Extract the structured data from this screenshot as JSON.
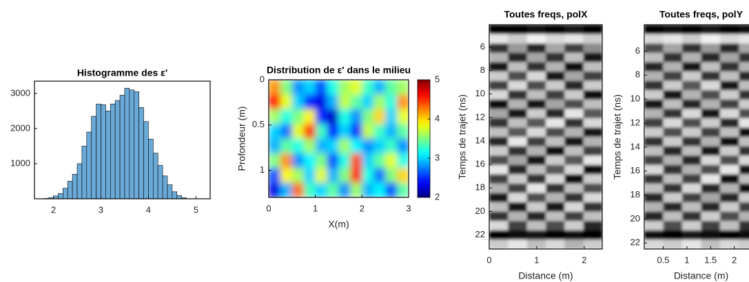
{
  "chart_data": [
    {
      "type": "histogram",
      "title": "Histogramme des ε'",
      "color": "#6aaad8",
      "bins": [
        1.8,
        1.9,
        2.0,
        2.1,
        2.2,
        2.3,
        2.4,
        2.5,
        2.6,
        2.7,
        2.8,
        2.9,
        3.0,
        3.1,
        3.2,
        3.3,
        3.4,
        3.5,
        3.6,
        3.7,
        3.8,
        3.9,
        4.0,
        4.1,
        4.2,
        4.3,
        4.4,
        4.5,
        4.6,
        4.7,
        4.8
      ],
      "values": [
        10,
        30,
        80,
        150,
        300,
        500,
        700,
        1000,
        1500,
        1900,
        2350,
        2700,
        2680,
        2500,
        2700,
        2800,
        2950,
        3150,
        3100,
        3050,
        2600,
        2200,
        1700,
        1300,
        950,
        650,
        400,
        200,
        90,
        30
      ],
      "xlim": [
        1.6,
        5.3
      ],
      "xticks": [
        2,
        3,
        4,
        5
      ],
      "ylim": [
        0,
        3350
      ],
      "yticks": [
        1000,
        2000,
        3000
      ]
    },
    {
      "type": "heatmap",
      "title": "Distribution de ε' dans le milieu",
      "xlabel": "X(m)",
      "ylabel": "Profondeur (m)",
      "xlim": [
        0,
        3
      ],
      "xticks": [
        0,
        1,
        2,
        3
      ],
      "ylim": [
        1.3,
        0
      ],
      "yticks": [
        0,
        0.5,
        1
      ],
      "colormap": "jet",
      "colorbar": true,
      "zlim": [
        2,
        5
      ],
      "zticks": [
        2,
        3,
        4,
        5
      ],
      "z": [
        [
          4.2,
          3.5,
          2.8,
          3.0,
          2.6,
          3.2,
          3.6,
          3.8,
          3.3,
          2.9,
          3.4,
          3.6
        ],
        [
          4.6,
          3.8,
          3.0,
          2.5,
          2.3,
          2.9,
          3.7,
          3.4,
          3.0,
          3.6,
          3.2,
          4.2
        ],
        [
          3.6,
          3.2,
          3.5,
          3.9,
          2.5,
          2.2,
          3.2,
          2.8,
          3.5,
          4.0,
          3.0,
          3.8
        ],
        [
          3.0,
          2.7,
          3.8,
          4.5,
          3.3,
          2.4,
          3.0,
          2.5,
          3.7,
          3.3,
          2.9,
          3.4
        ],
        [
          2.9,
          3.4,
          3.2,
          3.6,
          2.9,
          3.0,
          3.6,
          3.1,
          2.8,
          3.0,
          3.3,
          2.8
        ],
        [
          3.5,
          4.2,
          2.8,
          3.1,
          3.5,
          2.6,
          3.2,
          4.4,
          3.0,
          3.4,
          3.8,
          3.2
        ],
        [
          2.6,
          3.9,
          3.6,
          3.0,
          3.8,
          2.9,
          3.5,
          4.6,
          3.2,
          2.7,
          3.5,
          4.0
        ],
        [
          2.3,
          2.9,
          4.3,
          3.3,
          3.0,
          3.4,
          2.8,
          3.6,
          2.9,
          3.1,
          2.6,
          3.4
        ]
      ]
    },
    {
      "type": "heatmap",
      "title": "Toutes freqs, polX",
      "xlabel": "Distance (m)",
      "ylabel": "Temps de trajet (ns)",
      "xlim": [
        0,
        2.38
      ],
      "xticks": [
        0,
        1,
        2
      ],
      "ylim": [
        23.2,
        4.1
      ],
      "yticks": [
        6,
        8,
        10,
        12,
        14,
        16,
        18,
        20,
        22
      ],
      "colormap": "gray",
      "colorbar": false,
      "zlim": [
        -1,
        1
      ],
      "z": [
        [
          -1,
          -1,
          -0.9,
          -1,
          -0.8,
          -1
        ],
        [
          0.8,
          0.6,
          0.9,
          0.7,
          0.8,
          0.6
        ],
        [
          -0.6,
          0.2,
          -0.7,
          0.3,
          -0.5,
          0.1
        ],
        [
          0.4,
          -0.7,
          0.3,
          -0.6,
          0.5,
          -0.8
        ],
        [
          -0.8,
          0.5,
          -0.6,
          0.4,
          -0.9,
          0.5
        ],
        [
          0.6,
          -0.4,
          0.7,
          -0.8,
          0.3,
          -0.5
        ],
        [
          -0.5,
          0.7,
          -0.4,
          0.6,
          -0.7,
          0.6
        ],
        [
          0.7,
          -0.6,
          0.5,
          -0.5,
          0.6,
          -0.9
        ],
        [
          -0.9,
          0.4,
          -0.8,
          0.3,
          -0.4,
          0.5
        ],
        [
          0.3,
          -0.8,
          0.6,
          -0.7,
          0.8,
          -0.3
        ],
        [
          -0.6,
          0.5,
          -0.3,
          0.8,
          -0.6,
          0.7
        ],
        [
          0.5,
          -0.3,
          0.7,
          -0.4,
          0.4,
          -0.8
        ],
        [
          -0.7,
          0.8,
          -0.5,
          0.5,
          -0.8,
          0.4
        ],
        [
          0.6,
          -0.6,
          0.4,
          -0.9,
          0.5,
          -0.5
        ],
        [
          -0.4,
          0.3,
          -0.8,
          0.6,
          -0.3,
          0.8
        ],
        [
          0.8,
          -0.7,
          0.5,
          -0.3,
          0.7,
          -0.9
        ],
        [
          -0.5,
          0.6,
          -0.6,
          0.7,
          -0.9,
          0.6
        ],
        [
          0.4,
          -0.5,
          0.8,
          -0.6,
          0.5,
          -0.4
        ],
        [
          -0.8,
          0.7,
          -0.4,
          0.4,
          -0.6,
          0.7
        ],
        [
          0.5,
          -0.8,
          0.6,
          -0.8,
          0.7,
          -0.6
        ],
        [
          -0.6,
          0.4,
          -0.7,
          0.5,
          -0.5,
          0.5
        ],
        [
          0.7,
          -0.5,
          0.5,
          -0.4,
          0.6,
          -0.7
        ],
        [
          -1,
          -0.9,
          -0.8,
          -1,
          -0.9,
          -1
        ],
        [
          0.6,
          0.8,
          0.5,
          0.7,
          0.4,
          0.6
        ]
      ]
    },
    {
      "type": "heatmap",
      "title": "Toutes freqs, polY",
      "xlabel": "Distance (m)",
      "ylabel": "Temps de trajet (ns)",
      "xlim": [
        0.1,
        2.5
      ],
      "xticks": [
        0.5,
        1,
        1.5,
        2
      ],
      "ylim": [
        22.5,
        3.8
      ],
      "yticks": [
        6,
        8,
        10,
        12,
        14,
        16,
        18,
        20,
        22
      ],
      "colormap": "gray",
      "colorbar": false,
      "zlim": [
        -1,
        1
      ],
      "z": [
        [
          -1,
          -0.9,
          -1,
          -0.8,
          -1,
          -0.9
        ],
        [
          0.7,
          0.8,
          0.6,
          0.9,
          0.7,
          0.8
        ],
        [
          -0.4,
          0.3,
          -0.6,
          0.2,
          -0.7,
          0.3
        ],
        [
          0.5,
          -0.6,
          0.4,
          -0.7,
          0.3,
          -0.6
        ],
        [
          -0.7,
          0.4,
          -0.8,
          0.5,
          -0.6,
          0.4
        ],
        [
          0.4,
          -0.5,
          0.6,
          -0.6,
          0.5,
          -0.7
        ],
        [
          -0.6,
          0.6,
          -0.3,
          0.7,
          -0.8,
          0.5
        ],
        [
          0.6,
          -0.8,
          0.4,
          -0.4,
          0.6,
          -0.6
        ],
        [
          -0.8,
          0.5,
          -0.7,
          0.4,
          -0.5,
          0.6
        ],
        [
          0.4,
          -0.6,
          0.7,
          -0.8,
          0.7,
          -0.4
        ],
        [
          -0.5,
          0.7,
          -0.4,
          0.6,
          -0.7,
          0.8
        ],
        [
          0.6,
          -0.4,
          0.6,
          -0.5,
          0.5,
          -0.9
        ],
        [
          -0.6,
          0.6,
          -0.6,
          0.4,
          -0.9,
          0.5
        ],
        [
          0.5,
          -0.7,
          0.5,
          -0.8,
          0.6,
          -0.6
        ],
        [
          -0.5,
          0.4,
          -0.7,
          0.7,
          -0.4,
          0.7
        ],
        [
          0.7,
          -0.6,
          0.4,
          -0.4,
          0.8,
          -0.8
        ],
        [
          -0.6,
          0.5,
          -0.5,
          0.8,
          -0.9,
          0.5
        ],
        [
          0.5,
          -0.6,
          0.7,
          -0.7,
          0.4,
          -0.9
        ],
        [
          -0.7,
          0.6,
          -0.5,
          0.3,
          -0.7,
          0.6
        ],
        [
          0.4,
          -0.7,
          0.5,
          -0.7,
          0.6,
          -0.5
        ],
        [
          -0.7,
          0.5,
          -0.6,
          0.6,
          -0.4,
          0.4
        ],
        [
          0.6,
          -0.4,
          0.6,
          -0.5,
          0.5,
          -0.6
        ],
        [
          -0.9,
          -1,
          -0.8,
          -0.9,
          -1,
          -0.9
        ],
        [
          0.7,
          0.6,
          0.8,
          0.5,
          0.7,
          0.6
        ]
      ]
    }
  ]
}
